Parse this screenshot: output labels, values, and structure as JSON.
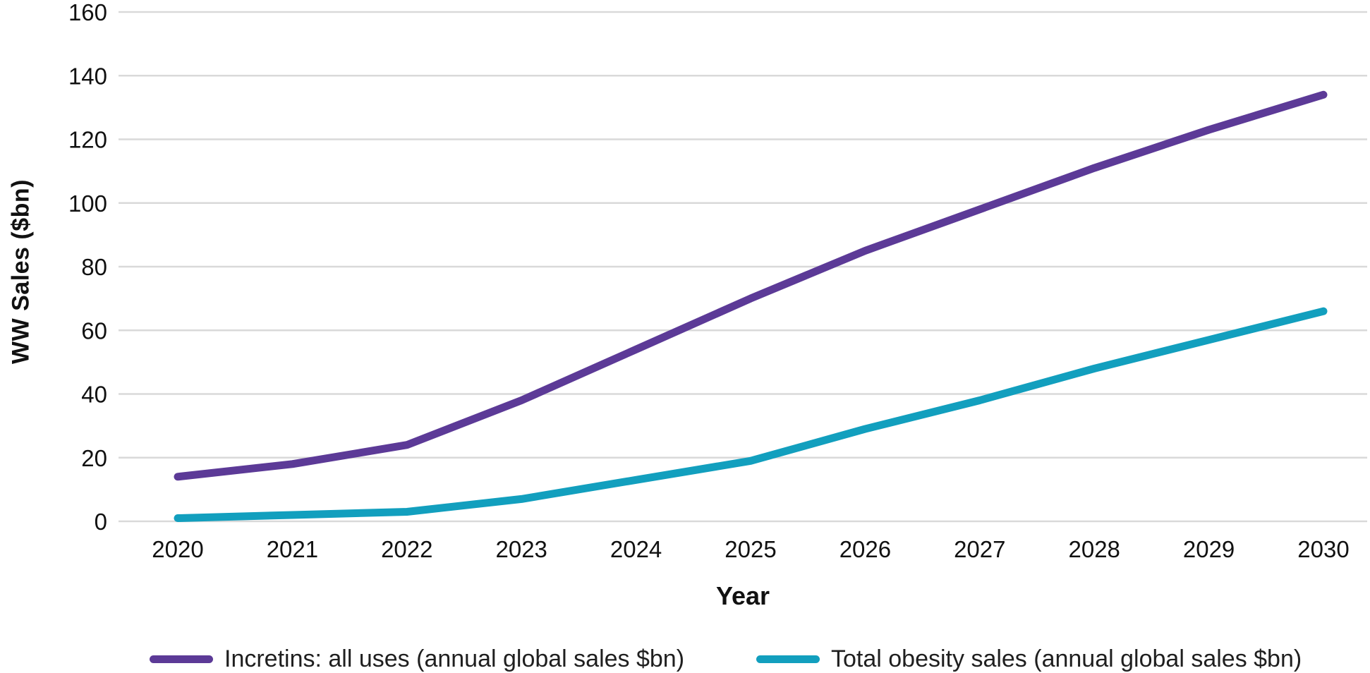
{
  "chart_data": {
    "type": "line",
    "title": "",
    "x": [
      2020,
      2021,
      2022,
      2023,
      2024,
      2025,
      2026,
      2027,
      2028,
      2029,
      2030
    ],
    "series": [
      {
        "name": "Incretins: all uses (annual global sales $bn)",
        "color": "#5C3A97",
        "values": [
          14,
          18,
          24,
          38,
          54,
          70,
          85,
          98,
          111,
          123,
          134
        ]
      },
      {
        "name": "Total obesity sales (annual global sales $bn)",
        "color": "#129FBE",
        "values": [
          1,
          2,
          3,
          7,
          13,
          19,
          29,
          38,
          48,
          57,
          66
        ]
      }
    ],
    "xlabel": "Year",
    "ylabel": "WW Sales ($bn)",
    "ylim": [
      0,
      160
    ],
    "y_tick_step": 20,
    "y_tick_labels": [
      "0",
      "20",
      "40",
      "60",
      "80",
      "100",
      "120",
      "140",
      "160"
    ],
    "grid": "horizontal",
    "gridline_color": "#d9d9d9",
    "tick_label_color": "#111111",
    "legend_position": "bottom"
  }
}
